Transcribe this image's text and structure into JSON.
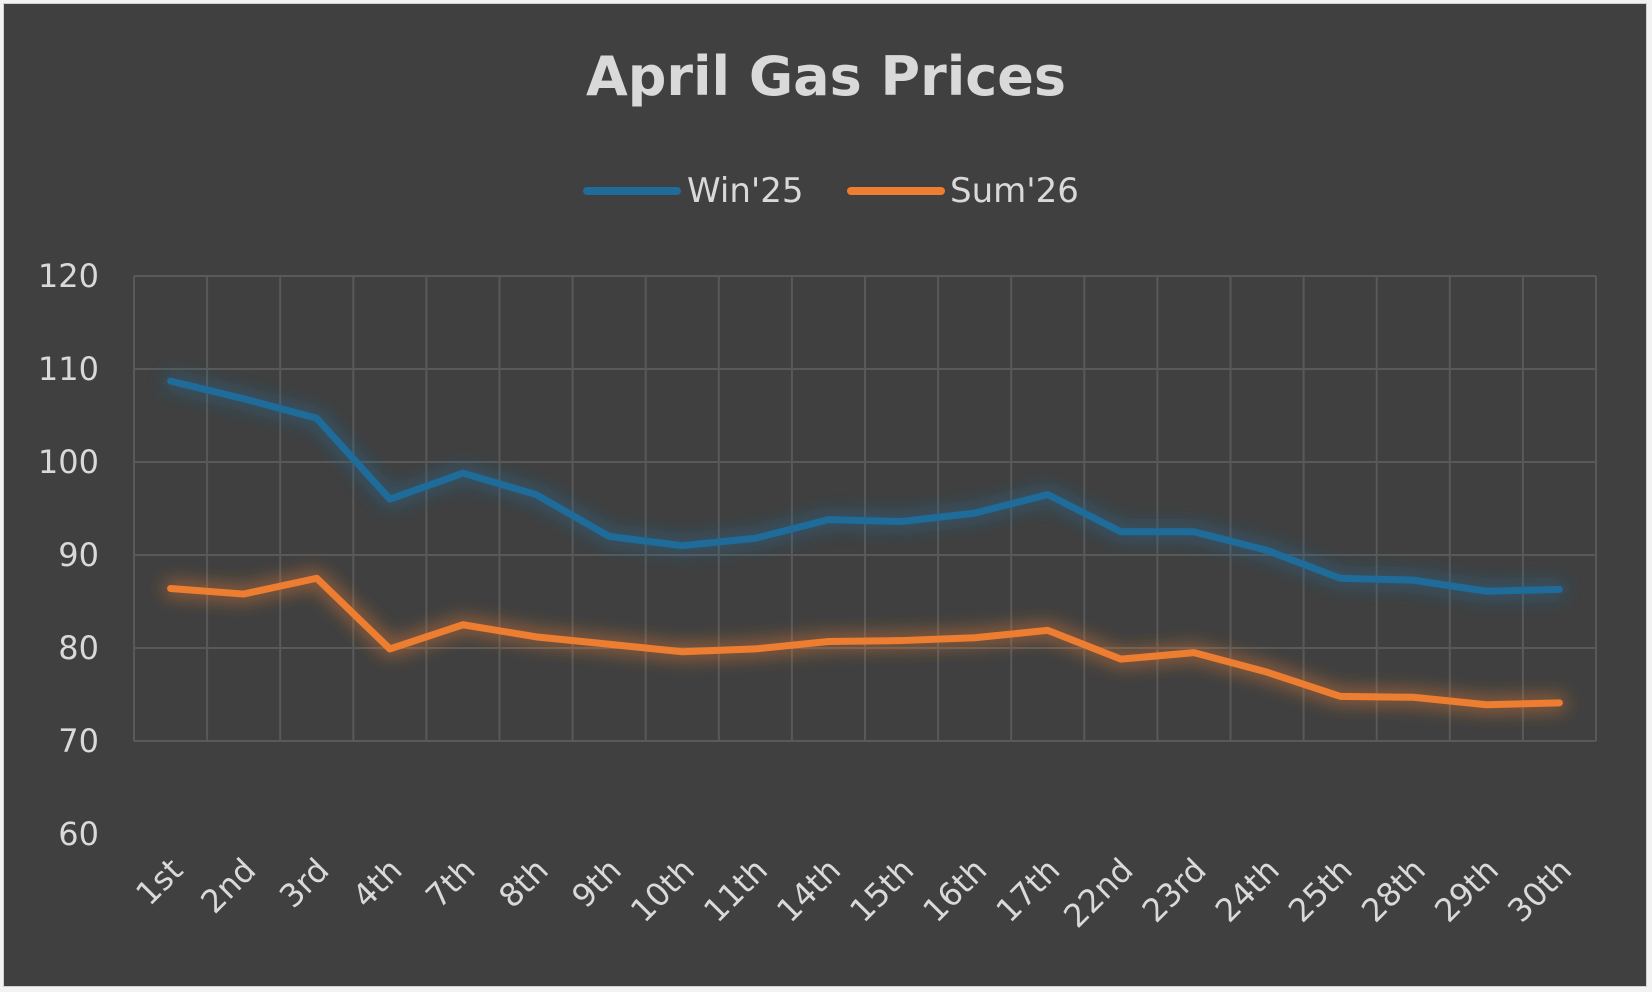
{
  "chart_data": {
    "type": "line",
    "title": "April Gas Prices",
    "xlabel": "",
    "ylabel": "",
    "categories": [
      "1st",
      "2nd",
      "3rd",
      "4th",
      "7th",
      "8th",
      "9th",
      "10th",
      "11th",
      "14th",
      "15th",
      "16th",
      "17th",
      "22nd",
      "23rd",
      "24th",
      "25th",
      "28th",
      "29th",
      "30th"
    ],
    "ylim": [
      60,
      120
    ],
    "yticks": [
      60,
      70,
      80,
      90,
      100,
      110,
      120
    ],
    "grid": true,
    "legend": "top-center",
    "series": [
      {
        "name": "Win'25",
        "color": "#1f6b99",
        "values": [
          108.7,
          106.8,
          104.7,
          96.0,
          98.8,
          96.5,
          92.0,
          91.0,
          91.8,
          93.8,
          93.6,
          94.5,
          96.5,
          92.5,
          92.5,
          90.5,
          87.5,
          87.3,
          86.1,
          86.3
        ]
      },
      {
        "name": "Sum'26",
        "color": "#ed7d31",
        "values": [
          86.4,
          85.8,
          87.5,
          79.9,
          82.5,
          81.2,
          80.4,
          79.6,
          79.9,
          80.7,
          80.8,
          81.1,
          81.9,
          78.8,
          79.5,
          77.4,
          74.8,
          74.7,
          73.9,
          74.1
        ]
      }
    ]
  }
}
